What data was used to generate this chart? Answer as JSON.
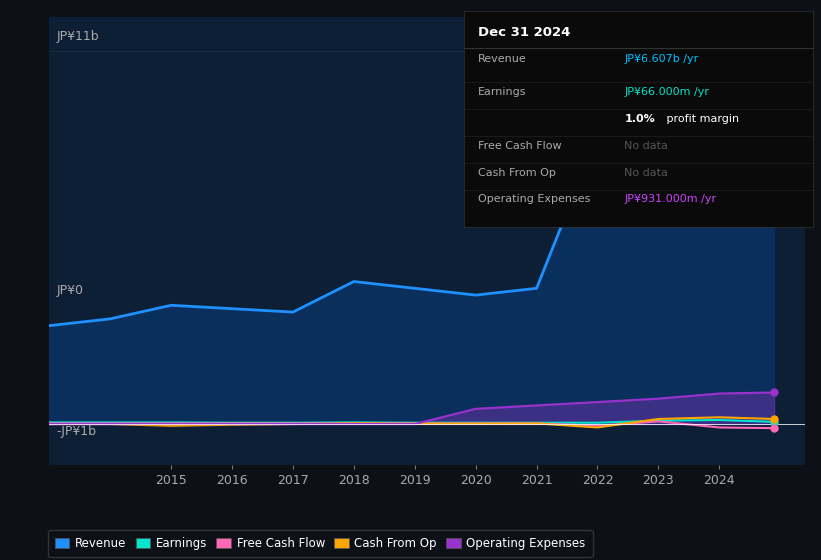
{
  "bg_color": "#0d1117",
  "plot_bg_color": "#0d1f35",
  "grid_color": "#1e3a5a",
  "ylabel_top": "JP¥11b",
  "ylabel_zero": "JP¥0",
  "ylabel_neg": "-JP¥1b",
  "years": [
    2013,
    2013.5,
    2014,
    2015,
    2016,
    2017,
    2018,
    2019,
    2020,
    2021,
    2022,
    2023,
    2024,
    2024.9
  ],
  "revenue": [
    2.9,
    3.0,
    3.1,
    3.5,
    3.4,
    3.3,
    4.2,
    4.0,
    3.8,
    4.0,
    8.5,
    10.8,
    8.0,
    6.607
  ],
  "earnings": [
    0.05,
    0.05,
    0.05,
    0.05,
    0.04,
    0.04,
    0.05,
    0.04,
    0.04,
    0.04,
    0.04,
    0.1,
    0.12,
    0.066
  ],
  "free_cash_flow": [
    0.02,
    0.02,
    0.02,
    0.02,
    0.02,
    0.02,
    0.02,
    0.02,
    0.02,
    0.02,
    -0.05,
    0.08,
    -0.1,
    -0.12
  ],
  "cash_from_op": [
    0.0,
    0.0,
    0.0,
    -0.05,
    -0.02,
    0.0,
    0.02,
    0.01,
    0.01,
    0.02,
    -0.1,
    0.15,
    0.2,
    0.15
  ],
  "op_expenses": [
    0.0,
    0.0,
    0.0,
    0.0,
    0.0,
    0.0,
    0.0,
    0.0,
    0.45,
    0.55,
    0.65,
    0.75,
    0.9,
    0.931
  ],
  "revenue_color": "#1e90ff",
  "revenue_fill": "#0a3060",
  "earnings_color": "#00e5cc",
  "fcf_color": "#ff69b4",
  "cfo_color": "#ffa500",
  "opex_color": "#9932cc",
  "legend": [
    {
      "label": "Revenue",
      "color": "#1e90ff"
    },
    {
      "label": "Earnings",
      "color": "#00e5cc"
    },
    {
      "label": "Free Cash Flow",
      "color": "#ff69b4"
    },
    {
      "label": "Cash From Op",
      "color": "#ffa500"
    },
    {
      "label": "Operating Expenses",
      "color": "#9932cc"
    }
  ],
  "ylim": [
    -1.2,
    12.0
  ],
  "xlim": [
    2013.0,
    2025.4
  ],
  "info_box": {
    "title": "Dec 31 2024",
    "rows": [
      {
        "label": "Revenue",
        "value": "JP¥6.607b /yr",
        "value_color": "#00bfff",
        "label_color": "#aaaaaa"
      },
      {
        "label": "Earnings",
        "value": "JP¥66.000m /yr",
        "value_color": "#00e5cc",
        "label_color": "#aaaaaa"
      },
      {
        "label": "",
        "value": "1.0% profit margin",
        "value_color": "#ffffff",
        "label_color": "#aaaaaa",
        "bold_prefix": "1.0%"
      },
      {
        "label": "Free Cash Flow",
        "value": "No data",
        "value_color": "#555555",
        "label_color": "#aaaaaa"
      },
      {
        "label": "Cash From Op",
        "value": "No data",
        "value_color": "#555555",
        "label_color": "#aaaaaa"
      },
      {
        "label": "Operating Expenses",
        "value": "JP¥931.000m /yr",
        "value_color": "#cc44ff",
        "label_color": "#aaaaaa"
      }
    ]
  }
}
